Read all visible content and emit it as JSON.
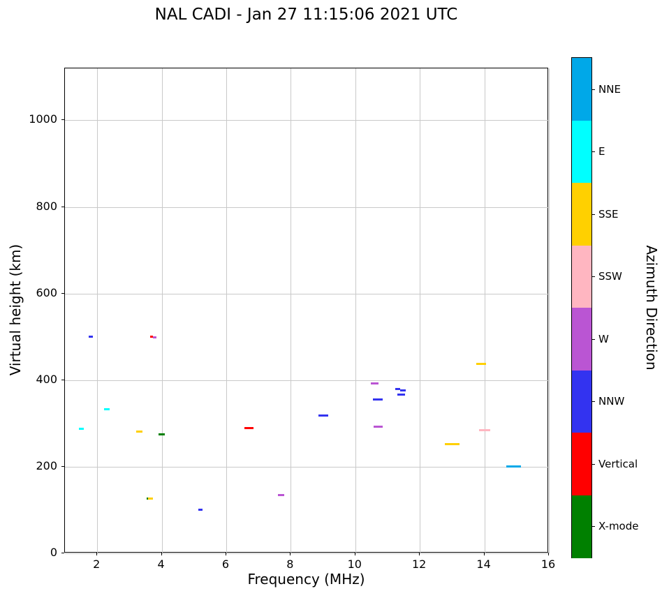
{
  "chart_data": {
    "type": "scatter",
    "title": "NAL CADI - Jan 27 11:15:06 2021 UTC",
    "xlabel": "Frequency (MHz)",
    "ylabel": "Virtual height (km)",
    "xlim": [
      1,
      16
    ],
    "ylim": [
      0,
      1120
    ],
    "xticks": [
      2,
      4,
      6,
      8,
      10,
      12,
      14,
      16
    ],
    "yticks": [
      0,
      200,
      400,
      600,
      800,
      1000
    ],
    "grid": true,
    "grid_color": "#c9c9c9",
    "marker": "horizontal-dash",
    "colorbar": {
      "label": "Azimuth Direction",
      "categories": [
        {
          "label": "NNE",
          "color": "#00a8e8"
        },
        {
          "label": "E",
          "color": "#00ffff"
        },
        {
          "label": "SSE",
          "color": "#ffd000"
        },
        {
          "label": "SSW",
          "color": "#ffb6c1"
        },
        {
          "label": "W",
          "color": "#ba55d3"
        },
        {
          "label": "NNW",
          "color": "#3333f0"
        },
        {
          "label": "Vertical",
          "color": "#ff0000"
        },
        {
          "label": "X-mode",
          "color": "#008000"
        }
      ]
    },
    "points": [
      {
        "freq_mhz": 1.5,
        "height_km": 288,
        "azimuth": "E",
        "span_mhz": 0.15
      },
      {
        "freq_mhz": 1.8,
        "height_km": 500,
        "azimuth": "NNW",
        "span_mhz": 0.12
      },
      {
        "freq_mhz": 2.3,
        "height_km": 333,
        "azimuth": "E",
        "span_mhz": 0.18
      },
      {
        "freq_mhz": 3.3,
        "height_km": 281,
        "azimuth": "SSE",
        "span_mhz": 0.2
      },
      {
        "freq_mhz": 3.58,
        "height_km": 127,
        "azimuth": "X-mode",
        "span_mhz": 0.07
      },
      {
        "freq_mhz": 3.66,
        "height_km": 127,
        "azimuth": "SSE",
        "span_mhz": 0.15
      },
      {
        "freq_mhz": 3.68,
        "height_km": 500,
        "azimuth": "Vertical",
        "span_mhz": 0.09
      },
      {
        "freq_mhz": 3.78,
        "height_km": 499,
        "azimuth": "W",
        "span_mhz": 0.12
      },
      {
        "freq_mhz": 4.0,
        "height_km": 275,
        "azimuth": "X-mode",
        "span_mhz": 0.18
      },
      {
        "freq_mhz": 5.2,
        "height_km": 100,
        "azimuth": "NNW",
        "span_mhz": 0.15
      },
      {
        "freq_mhz": 6.7,
        "height_km": 290,
        "azimuth": "Vertical",
        "span_mhz": 0.28
      },
      {
        "freq_mhz": 7.7,
        "height_km": 135,
        "azimuth": "W",
        "span_mhz": 0.2
      },
      {
        "freq_mhz": 9.0,
        "height_km": 318,
        "azimuth": "NNW",
        "span_mhz": 0.3
      },
      {
        "freq_mhz": 10.6,
        "height_km": 392,
        "azimuth": "W",
        "span_mhz": 0.22
      },
      {
        "freq_mhz": 10.7,
        "height_km": 356,
        "azimuth": "NNW",
        "span_mhz": 0.3
      },
      {
        "freq_mhz": 10.7,
        "height_km": 293,
        "azimuth": "W",
        "span_mhz": 0.28
      },
      {
        "freq_mhz": 11.32,
        "height_km": 380,
        "azimuth": "NNW",
        "span_mhz": 0.15
      },
      {
        "freq_mhz": 11.48,
        "height_km": 376,
        "azimuth": "NNW",
        "span_mhz": 0.18
      },
      {
        "freq_mhz": 11.42,
        "height_km": 366,
        "azimuth": "NNW",
        "span_mhz": 0.25
      },
      {
        "freq_mhz": 13.0,
        "height_km": 252,
        "azimuth": "SSE",
        "span_mhz": 0.45
      },
      {
        "freq_mhz": 13.9,
        "height_km": 437,
        "azimuth": "SSE",
        "span_mhz": 0.32
      },
      {
        "freq_mhz": 14.0,
        "height_km": 285,
        "azimuth": "SSW",
        "span_mhz": 0.35
      },
      {
        "freq_mhz": 14.9,
        "height_km": 200,
        "azimuth": "NNE",
        "span_mhz": 0.45
      }
    ]
  }
}
